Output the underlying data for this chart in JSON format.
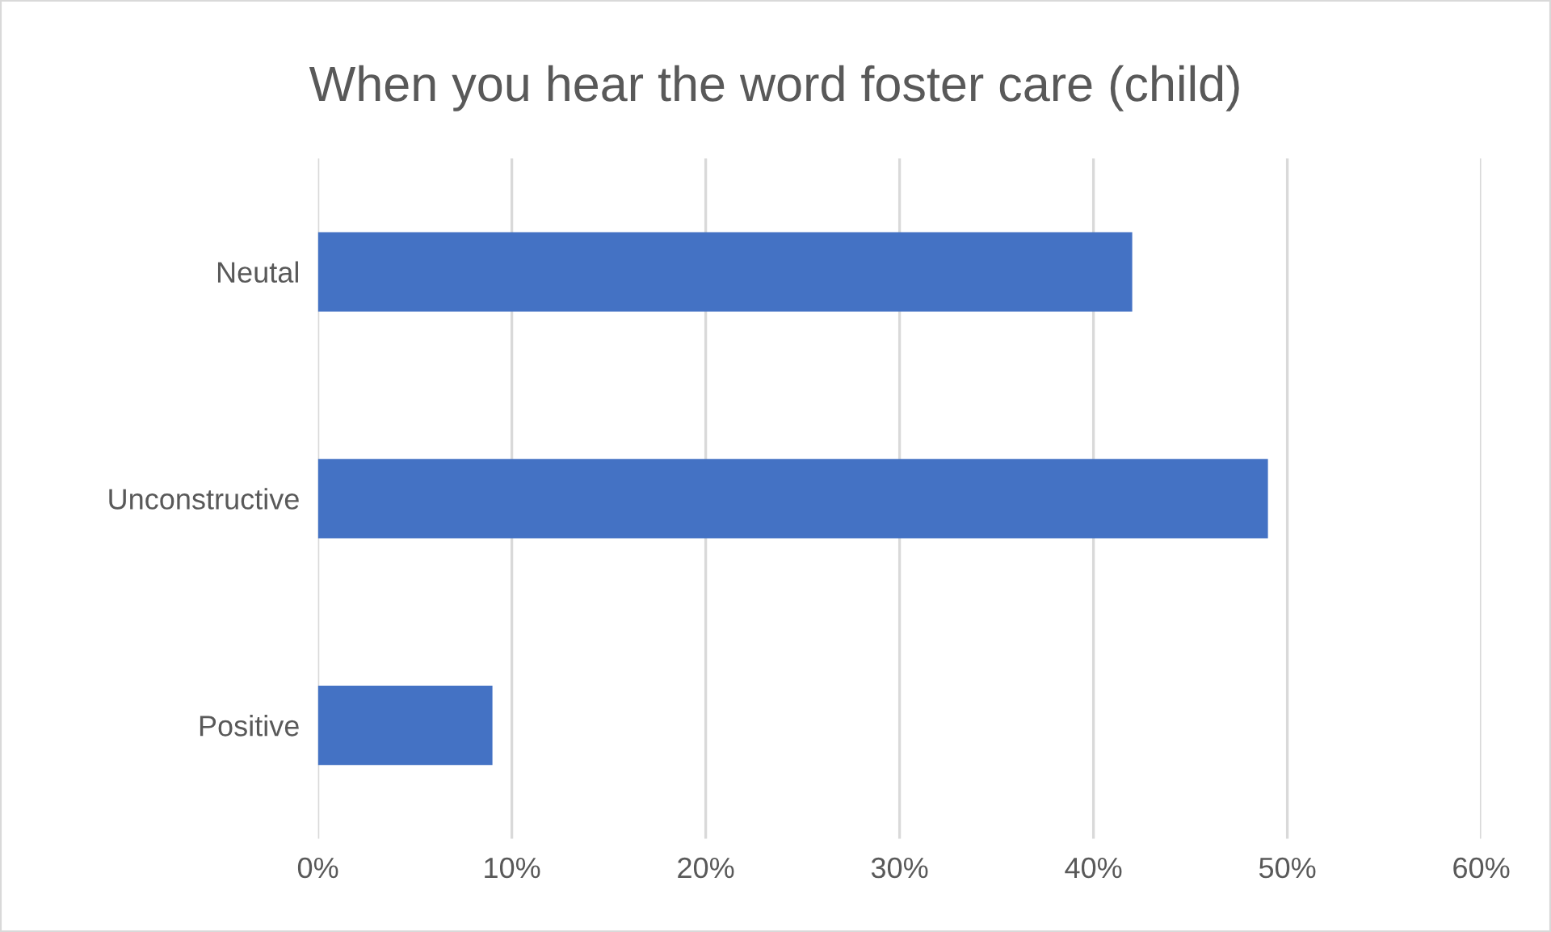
{
  "chart_data": {
    "type": "bar",
    "orientation": "horizontal",
    "title": "When you hear the word foster care (child)",
    "categories": [
      "Neutal",
      "Unconstructive",
      "Positive"
    ],
    "values": [
      42,
      49,
      9
    ],
    "color": "#4472c4",
    "xlim": [
      0,
      60
    ],
    "xticks": [
      {
        "value": 0,
        "label": "0%"
      },
      {
        "value": 10,
        "label": "10%"
      },
      {
        "value": 20,
        "label": "20%"
      },
      {
        "value": 30,
        "label": "30%"
      },
      {
        "value": 40,
        "label": "40%"
      },
      {
        "value": 50,
        "label": "50%"
      },
      {
        "value": 60,
        "label": "60%"
      }
    ],
    "grid": "x"
  }
}
